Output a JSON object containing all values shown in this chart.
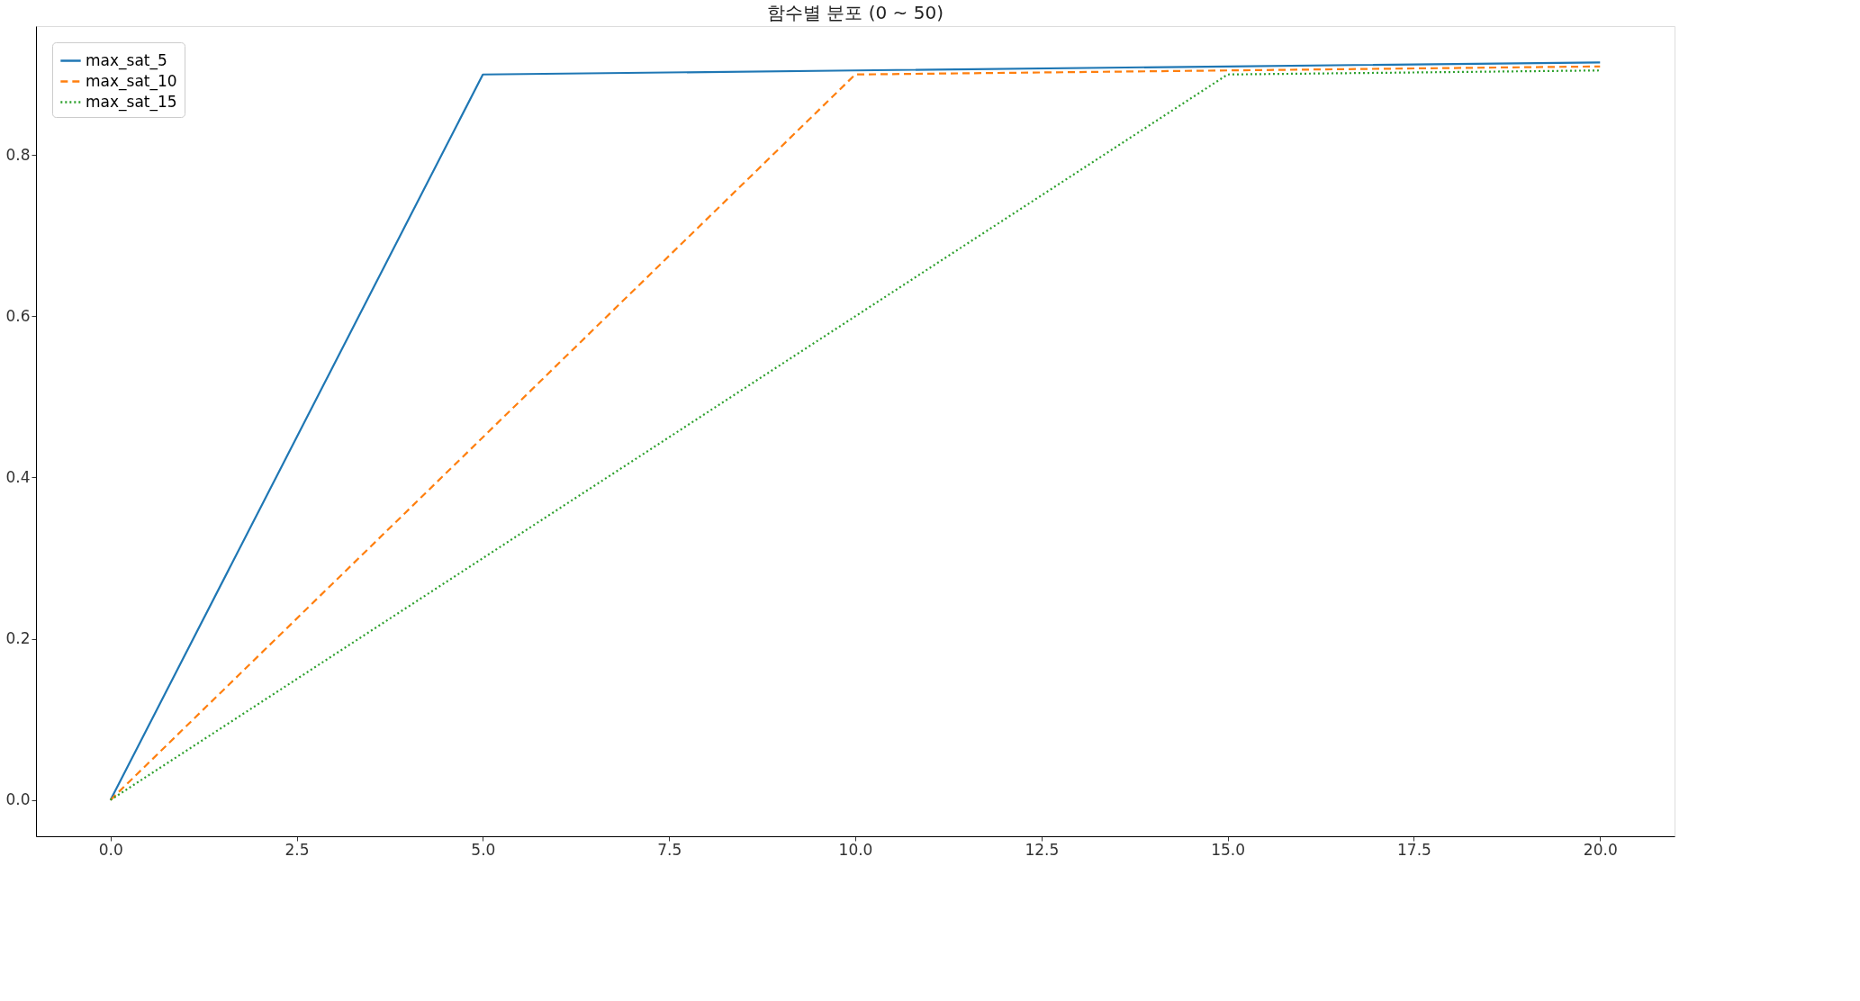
{
  "chart_data": {
    "type": "line",
    "title": "함수별 분포 (0 ~ 50)",
    "x": [
      0,
      5,
      10,
      15,
      20
    ],
    "series": [
      {
        "name": "max_sat_5",
        "color": "#1f77b4",
        "line_style": "solid",
        "values": [
          0,
          0.9,
          0.905,
          0.91,
          0.915
        ]
      },
      {
        "name": "max_sat_10",
        "color": "#ff7f0e",
        "line_style": "dashed",
        "values": [
          0,
          0.45,
          0.9,
          0.905,
          0.91
        ]
      },
      {
        "name": "max_sat_15",
        "color": "#2ca02c",
        "line_style": "dotted",
        "values": [
          0,
          0.3,
          0.6,
          0.9,
          0.905
        ]
      }
    ],
    "xlim": [
      -1.0,
      21.0
    ],
    "ylim": [
      -0.045,
      0.96
    ],
    "xticks": [
      {
        "value": 0,
        "label": "0.0"
      },
      2.5,
      {
        "value": 5,
        "label": "5.0"
      },
      7.5,
      {
        "value": 10,
        "label": "10.0"
      },
      12.5,
      {
        "value": 15,
        "label": "15.0"
      },
      17.5,
      {
        "value": 20,
        "label": "20.0"
      }
    ],
    "yticks": [
      {
        "value": 0,
        "label": "0.0"
      },
      0.2,
      0.4,
      0.6,
      0.8
    ],
    "grid": false,
    "legend": "top left",
    "marker": "none"
  }
}
